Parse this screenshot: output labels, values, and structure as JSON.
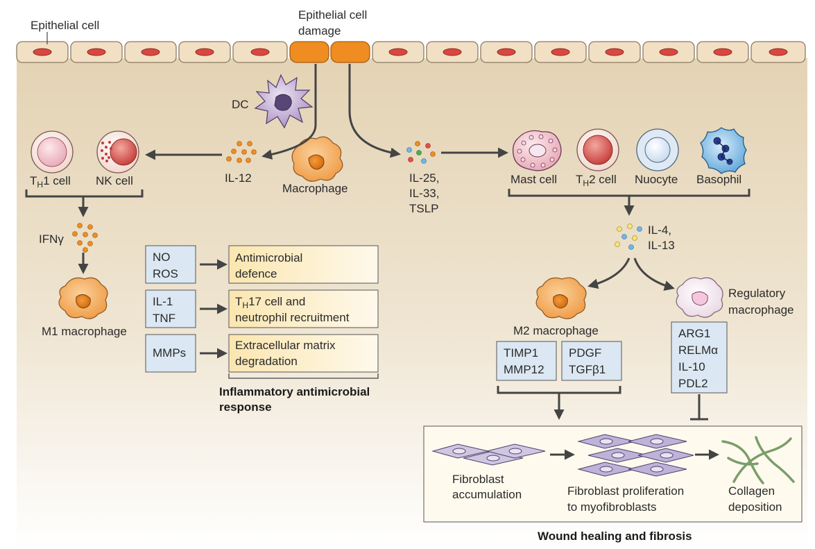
{
  "top": {
    "epithelial_cell": "Epithelial cell",
    "damage_line1": "Epithelial cell",
    "damage_line2": "damage"
  },
  "cells": {
    "dc": "DC",
    "macrophage": "Macrophage",
    "th1_prefix": "T",
    "th1_sub": "H",
    "th1_suffix": "1 cell",
    "nk": "NK cell",
    "mast": "Mast cell",
    "th2_prefix": "T",
    "th2_sub": "H",
    "th2_suffix": "2 cell",
    "nuocyte": "Nuocyte",
    "basophil": "Basophil",
    "m1": "M1 macrophage",
    "m2": "M2 macrophage",
    "regulatory_line1": "Regulatory",
    "regulatory_line2": "macrophage"
  },
  "cytokines": {
    "il12": "IL-12",
    "il25_line1": "IL-25,",
    "il25_line2": "IL-33,",
    "il25_line3": "TSLP",
    "ifng": "IFNγ",
    "il4_line1": "IL-4,",
    "il4_line2": "IL-13"
  },
  "m1_outputs": [
    {
      "input_lines": [
        "NO",
        "ROS"
      ],
      "output_lines": [
        "Antimicrobial",
        "defence"
      ]
    },
    {
      "input_lines": [
        "IL-1",
        "TNF"
      ],
      "output_lines": [
        "17 cell and",
        "neutrophil recruitment"
      ],
      "output_prefix": "T",
      "output_sub": "H"
    },
    {
      "input_lines": [
        "MMPs"
      ],
      "output_lines": [
        "Extracellular matrix",
        "degradation"
      ]
    }
  ],
  "inflammatory_label": [
    "Inflammatory antimicrobial",
    "response"
  ],
  "m2_boxes": [
    [
      "TIMP1",
      "MMP12"
    ],
    [
      "PDGF",
      "TGFβ1"
    ]
  ],
  "regulatory_box": [
    "ARG1",
    "RELMα",
    "IL-10",
    "PDL2"
  ],
  "fibrosis": {
    "step1": [
      "Fibroblast",
      "accumulation"
    ],
    "step2": [
      "Fibroblast proliferation",
      "to myofibroblasts"
    ],
    "step3": [
      "Collagen",
      "deposition"
    ],
    "title": "Wound healing and fibrosis"
  },
  "colors": {
    "epithelium": "#f3e2c6",
    "damaged": "#f0902a",
    "background_top": "#e6d6b8",
    "output_box": "#fdf1cc",
    "input_box": "#dde9f4",
    "arrow": "#444444"
  }
}
